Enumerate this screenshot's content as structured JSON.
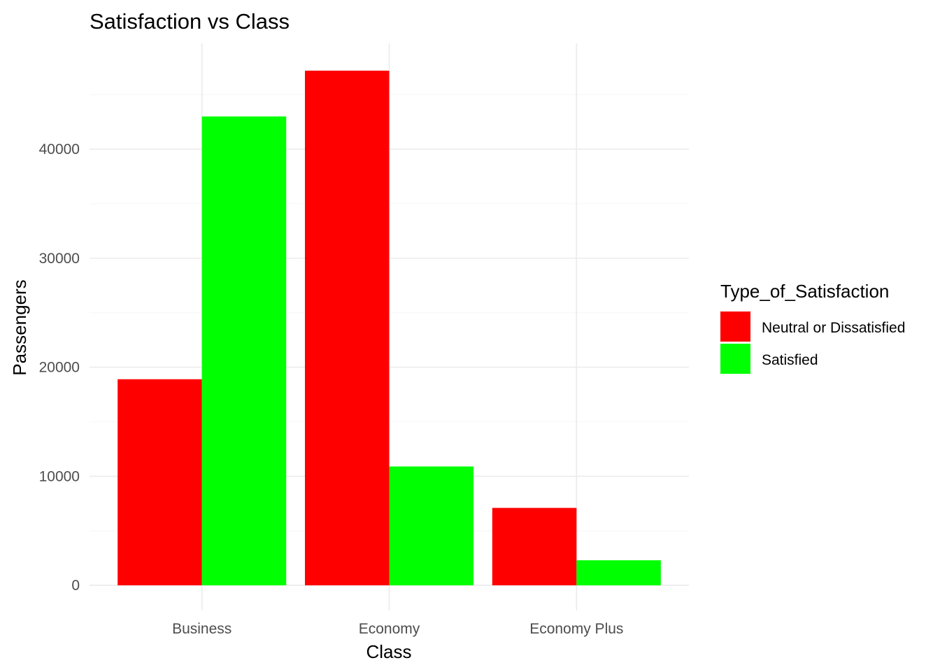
{
  "chart_data": {
    "type": "bar",
    "title": "Satisfaction vs Class",
    "xlabel": "Class",
    "ylabel": "Passengers",
    "categories": [
      "Business",
      "Economy",
      "Economy Plus"
    ],
    "series": [
      {
        "name": "Neutral or Dissatisfied",
        "color": "#ff0000",
        "values": [
          18900,
          47200,
          7100
        ]
      },
      {
        "name": "Satisfied",
        "color": "#00ff00",
        "values": [
          43000,
          10900,
          2300
        ]
      }
    ],
    "ylim": [
      -2300,
      49700
    ],
    "yticks": [
      0,
      10000,
      20000,
      30000,
      40000
    ],
    "ytick_labels": [
      "0",
      "10000",
      "20000",
      "30000",
      "40000"
    ],
    "grid": true,
    "legend": {
      "title": "Type_of_Satisfaction",
      "placement": "right"
    }
  }
}
